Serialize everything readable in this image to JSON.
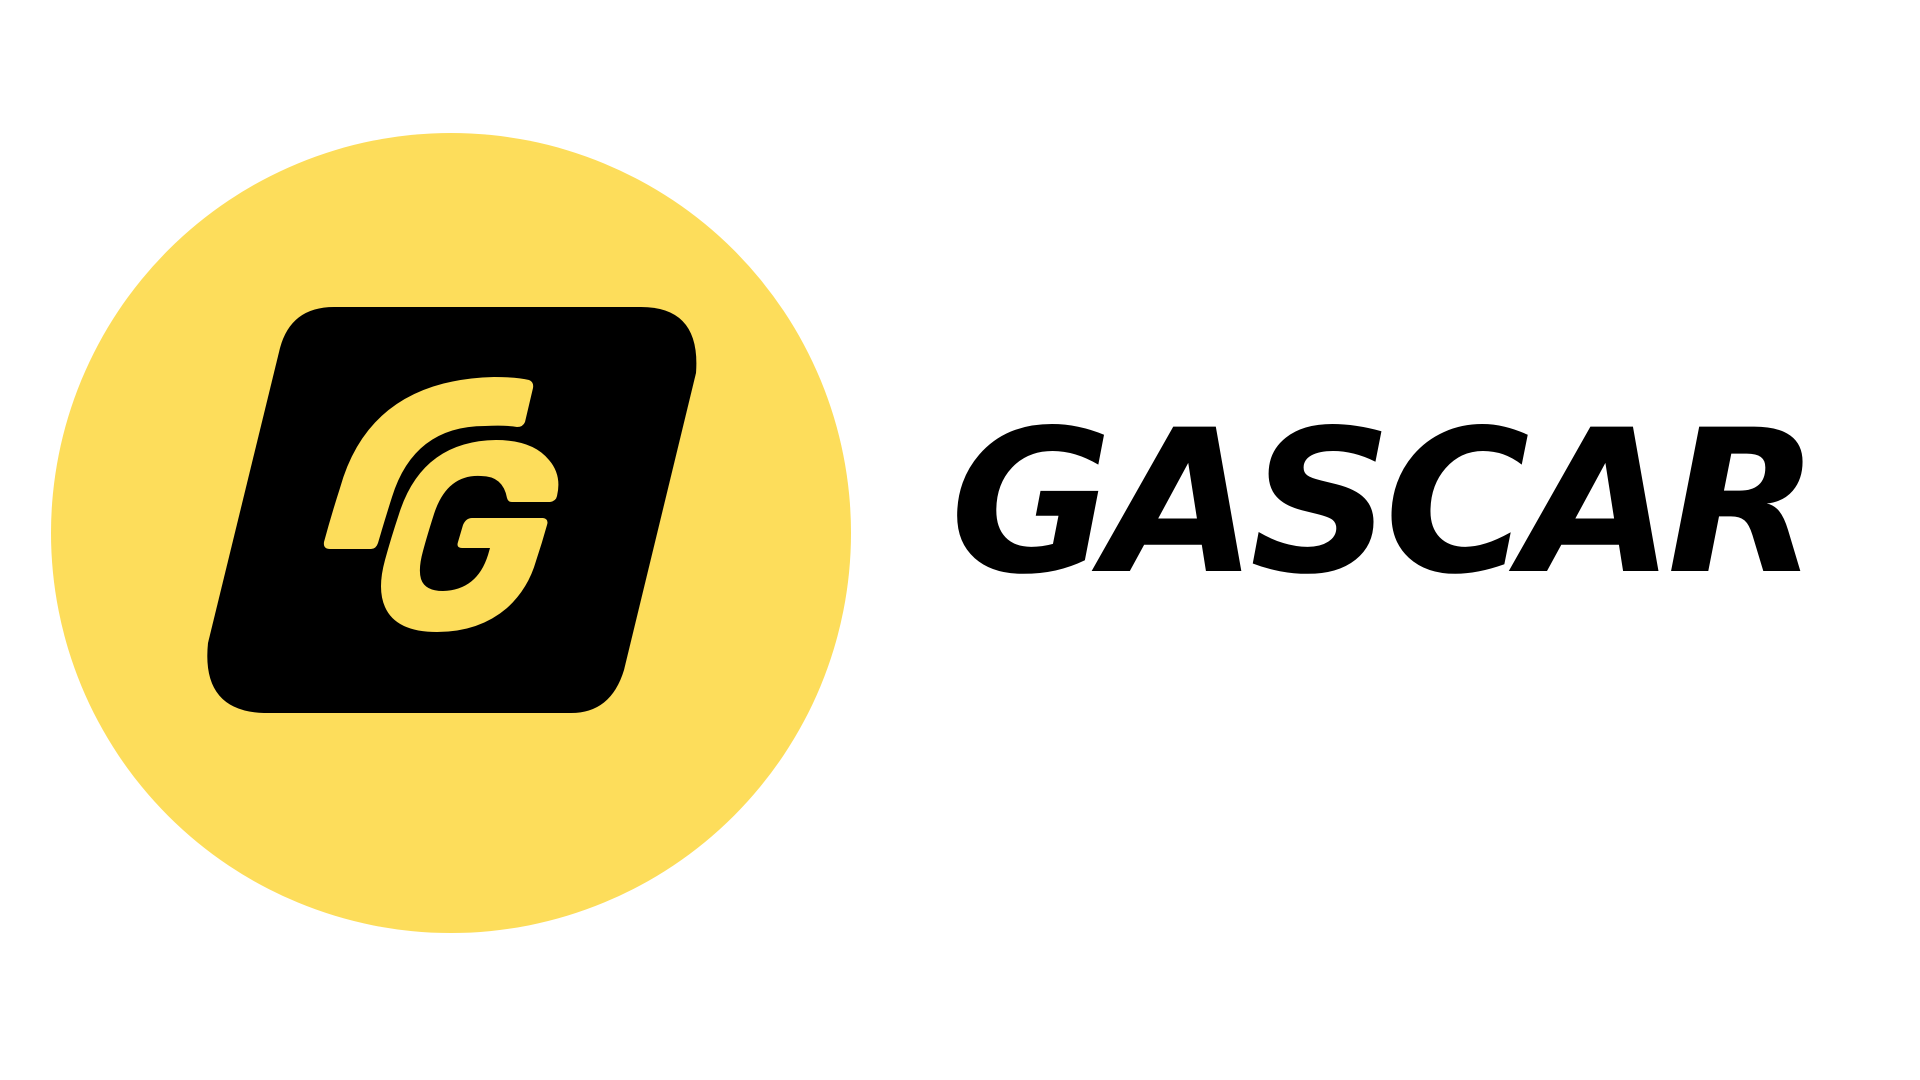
{
  "brand": {
    "name": "GASCAR",
    "icon": "g-monogram-icon",
    "colors": {
      "accent_yellow": "#FDDD5B",
      "mark_black": "#000000",
      "background": "#FFFFFF"
    }
  }
}
